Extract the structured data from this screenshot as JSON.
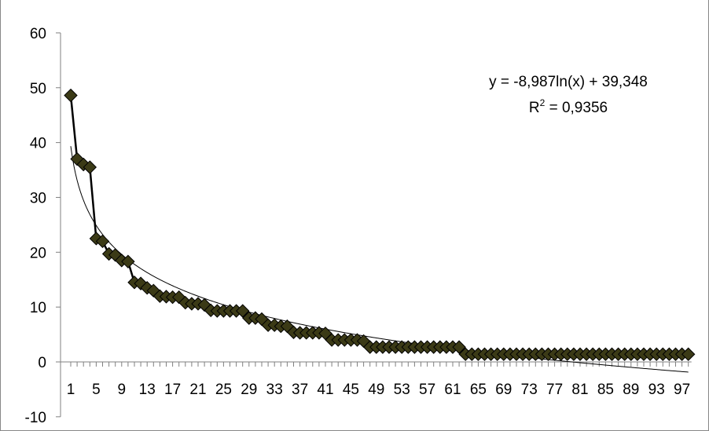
{
  "chart_data": {
    "type": "line",
    "title": "",
    "xlabel": "",
    "ylabel": "",
    "ylim": [
      -10,
      60
    ],
    "yticks": [
      -10,
      0,
      10,
      20,
      30,
      40,
      50,
      60
    ],
    "xlim": [
      1,
      98
    ],
    "xtick_labels": [
      "1",
      "5",
      "9",
      "13",
      "17",
      "21",
      "25",
      "29",
      "33",
      "37",
      "41",
      "45",
      "49",
      "53",
      "57",
      "61",
      "65",
      "69",
      "73",
      "77",
      "81",
      "85",
      "89",
      "93",
      "97"
    ],
    "grid": false,
    "legend": "none",
    "series": [
      {
        "marker": "diamond",
        "color": "#3b3a16",
        "x": [
          1,
          2,
          3,
          4,
          5,
          6,
          7,
          8,
          9,
          10,
          11,
          12,
          13,
          14,
          15,
          16,
          17,
          18,
          19,
          20,
          21,
          22,
          23,
          24,
          25,
          26,
          27,
          28,
          29,
          30,
          31,
          32,
          33,
          34,
          35,
          36,
          37,
          38,
          39,
          40,
          41,
          42,
          43,
          44,
          45,
          46,
          47,
          48,
          49,
          50,
          51,
          52,
          53,
          54,
          55,
          56,
          57,
          58,
          59,
          60,
          61,
          62,
          63,
          64,
          65,
          66,
          67,
          68,
          69,
          70,
          71,
          72,
          73,
          74,
          75,
          76,
          77,
          78,
          79,
          80,
          81,
          82,
          83,
          84,
          85,
          86,
          87,
          88,
          89,
          90,
          91,
          92,
          93,
          94,
          95,
          96,
          97,
          98
        ],
        "y": [
          48.6,
          37,
          36,
          35.5,
          22.5,
          22,
          19.7,
          19.5,
          18.5,
          18.3,
          14.5,
          14.3,
          13.5,
          13,
          12,
          11.9,
          11.8,
          11.8,
          10.8,
          10.6,
          10.6,
          10.4,
          9.4,
          9.3,
          9.3,
          9.3,
          9.3,
          9.3,
          8,
          8,
          7.8,
          6.7,
          6.7,
          6.5,
          6.5,
          5.4,
          5.3,
          5.3,
          5.3,
          5.3,
          5.2,
          4,
          4,
          4,
          4,
          4,
          3.8,
          2.7,
          2.7,
          2.7,
          2.7,
          2.7,
          2.7,
          2.7,
          2.7,
          2.7,
          2.7,
          2.7,
          2.7,
          2.7,
          2.7,
          2.7,
          1.4,
          1.4,
          1.4,
          1.4,
          1.4,
          1.4,
          1.4,
          1.4,
          1.4,
          1.4,
          1.4,
          1.4,
          1.4,
          1.4,
          1.4,
          1.4,
          1.4,
          1.4,
          1.4,
          1.4,
          1.4,
          1.4,
          1.4,
          1.4,
          1.4,
          1.4,
          1.4,
          1.4,
          1.4,
          1.4,
          1.4,
          1.4,
          1.4,
          1.4,
          1.4,
          1.4
        ]
      }
    ],
    "trendline": {
      "type": "logarithmic",
      "a": -8.987,
      "b": 39.348,
      "equation": "y = -8,987ln(x) + 39,348",
      "r_squared_prefix": "R",
      "r_squared_sup": "2",
      "r_squared_value": " = 0,9356"
    }
  }
}
